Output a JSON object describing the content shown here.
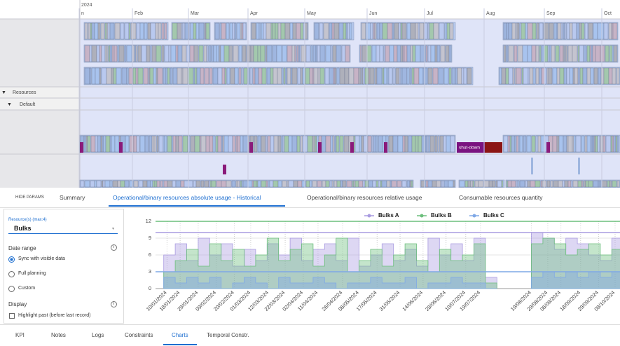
{
  "gantt": {
    "year": "2024",
    "months": [
      "n",
      "Feb",
      "Mar",
      "Apr",
      "May",
      "Jun",
      "Jul",
      "Aug",
      "Sep",
      "Oct"
    ],
    "rows": [
      "Resources",
      "Default"
    ],
    "shutdown": "shut-down"
  },
  "param_tabs": {
    "hide": "HIDE PARAMS",
    "tabs": [
      "Summary",
      "Operational/binary resources absolute usage - Historical",
      "Operational/binary resources relative usage",
      "Consumable resources quantity"
    ],
    "active": 1
  },
  "left_panel": {
    "resource_label": "Resource(s) (max:4)",
    "resource_value": "Bulks",
    "date_range": "Date range",
    "options": [
      "Sync with visible data",
      "Full planning",
      "Custom"
    ],
    "selected": 0,
    "display": "Display",
    "highlight": "Highlight past (before last record)"
  },
  "bottom_tabs": {
    "tabs": [
      "KPI",
      "Notes",
      "Logs",
      "Constraints",
      "Charts",
      "Temporal Constr."
    ],
    "active": 4
  },
  "chart_data": {
    "type": "line",
    "x": [
      "2024-01-08",
      "2024-01-15",
      "2024-01-22",
      "2024-01-29",
      "2024-02-05",
      "2024-02-12",
      "2024-02-19",
      "2024-02-26",
      "2024-03-04",
      "2024-03-11",
      "2024-03-18",
      "2024-03-25",
      "2024-04-01",
      "2024-04-08",
      "2024-04-15",
      "2024-04-22",
      "2024-04-29",
      "2024-05-06",
      "2024-05-13",
      "2024-05-20",
      "2024-05-27",
      "2024-06-03",
      "2024-06-10",
      "2024-06-17",
      "2024-06-24",
      "2024-07-01",
      "2024-07-08",
      "2024-07-15",
      "2024-07-22",
      "2024-07-29",
      "2024-08-05",
      "2024-08-12",
      "2024-08-19",
      "2024-08-26",
      "2024-09-02",
      "2024-09-09",
      "2024-09-16",
      "2024-09-23",
      "2024-09-30",
      "2024-10-07"
    ],
    "series": [
      {
        "name": "Bulks A",
        "color": "#a99be0",
        "limit": 10,
        "values": [
          6,
          8,
          5,
          9,
          6,
          8,
          4,
          7,
          5,
          8,
          6,
          9,
          5,
          7,
          8,
          5,
          9,
          4,
          6,
          8,
          5,
          7,
          4,
          9,
          6,
          8,
          5,
          9,
          2,
          null,
          null,
          null,
          10,
          9,
          7,
          9,
          8,
          6,
          5,
          9
        ]
      },
      {
        "name": "Bulks B",
        "color": "#6cbf7c",
        "limit": 12,
        "values": [
          3,
          5,
          7,
          4,
          8,
          5,
          7,
          4,
          6,
          9,
          5,
          7,
          8,
          4,
          6,
          9,
          3,
          5,
          7,
          4,
          6,
          8,
          5,
          3,
          7,
          5,
          6,
          8,
          1,
          null,
          null,
          null,
          8,
          9,
          8,
          6,
          7,
          8,
          6,
          7
        ]
      },
      {
        "name": "Bulks C",
        "color": "#7fa8e6",
        "limit": 3,
        "values": [
          2,
          1,
          2,
          1,
          2,
          0,
          1,
          2,
          1,
          0,
          2,
          1,
          1,
          2,
          1,
          0,
          1,
          1,
          2,
          1,
          1,
          2,
          0,
          1,
          1,
          2,
          1,
          1,
          0,
          null,
          null,
          null,
          2,
          3,
          2,
          3,
          2,
          3,
          2,
          3
        ]
      }
    ],
    "xlim": [
      "2024-01-03",
      "2024-10-12"
    ],
    "xticks": [
      {
        "value": "2024-01-10",
        "label": "10/01/2024"
      },
      {
        "value": "2024-01-18",
        "label": "18/01/2024"
      },
      {
        "value": "2024-01-29",
        "label": "29/01/2024"
      },
      {
        "value": "2024-02-09",
        "label": "09/02/2024"
      },
      {
        "value": "2024-02-20",
        "label": "20/02/2024"
      },
      {
        "value": "2024-03-01",
        "label": "01/03/2024"
      },
      {
        "value": "2024-03-12",
        "label": "12/03/2024"
      },
      {
        "value": "2024-03-22",
        "label": "22/03/2024"
      },
      {
        "value": "2024-04-02",
        "label": "02/04/2024"
      },
      {
        "value": "2024-04-11",
        "label": "11/04/2024"
      },
      {
        "value": "2024-04-26",
        "label": "26/04/2024"
      },
      {
        "value": "2024-05-06",
        "label": "06/05/2024"
      },
      {
        "value": "2024-05-17",
        "label": "17/05/2024"
      },
      {
        "value": "2024-05-31",
        "label": "31/05/2024"
      },
      {
        "value": "2024-06-14",
        "label": "14/06/2024"
      },
      {
        "value": "2024-06-28",
        "label": "28/06/2024"
      },
      {
        "value": "2024-07-10",
        "label": "10/07/2024"
      },
      {
        "value": "2024-07-19",
        "label": "19/07/2024"
      },
      {
        "value": "2024-08-19",
        "label": "19/08/2024"
      },
      {
        "value": "2024-08-29",
        "label": "29/08/2024"
      },
      {
        "value": "2024-09-06",
        "label": "06/09/2024"
      },
      {
        "value": "2024-09-18",
        "label": "18/09/2024"
      },
      {
        "value": "2024-09-29",
        "label": "29/09/2024"
      },
      {
        "value": "2024-10-09",
        "label": "09/10/2024"
      }
    ],
    "ylim": [
      0,
      12
    ],
    "yticks": [
      0,
      3,
      6,
      9,
      12
    ],
    "grid": true,
    "legend": "top"
  }
}
